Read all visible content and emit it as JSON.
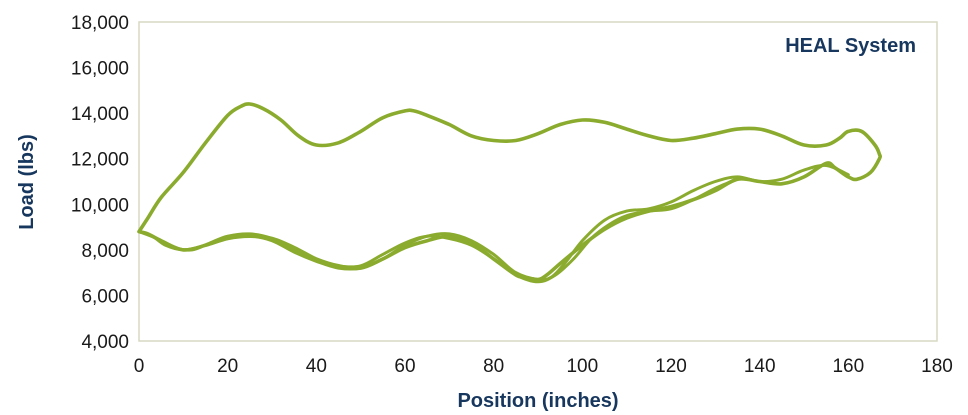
{
  "chart_data": {
    "type": "line",
    "title": "",
    "xlabel": "Position (inches)",
    "ylabel": "Load (lbs)",
    "xlim": [
      0,
      180
    ],
    "ylim": [
      4000,
      18000
    ],
    "x_ticks": [
      0,
      20,
      40,
      60,
      80,
      100,
      120,
      140,
      160,
      180
    ],
    "y_ticks": [
      4000,
      6000,
      8000,
      10000,
      12000,
      14000,
      16000,
      18000
    ],
    "x_tick_labels": [
      "0",
      "20",
      "40",
      "60",
      "80",
      "100",
      "120",
      "140",
      "160",
      "180"
    ],
    "y_tick_labels": [
      "4,000",
      "6,000",
      "8,000",
      "10,000",
      "12,000",
      "14,000",
      "16,000",
      "18,000"
    ],
    "grid": false,
    "legend": {
      "label": "HEAL System",
      "placement": "top-right"
    },
    "line_color": "#8aab2e",
    "series": [
      {
        "name": "HEAL System",
        "x": [
          0,
          2,
          5,
          10,
          15,
          20,
          23,
          25,
          28,
          32,
          36,
          40,
          45,
          50,
          55,
          60,
          62,
          65,
          70,
          75,
          80,
          85,
          90,
          95,
          100,
          105,
          110,
          115,
          120,
          125,
          130,
          135,
          140,
          145,
          150,
          155,
          158,
          160,
          163,
          166,
          167,
          167,
          165,
          162,
          160,
          157,
          155,
          150,
          145,
          140,
          135,
          130,
          125,
          120,
          115,
          110,
          105,
          100,
          95,
          92,
          90,
          87,
          85,
          80,
          75,
          70,
          65,
          60,
          55,
          50,
          45,
          40,
          35,
          30,
          25,
          20,
          15,
          10,
          5,
          2,
          0
        ],
        "y": [
          8800,
          9400,
          10300,
          11400,
          12700,
          13900,
          14300,
          14400,
          14200,
          13700,
          13000,
          12600,
          12700,
          13200,
          13800,
          14100,
          14100,
          13900,
          13500,
          13000,
          12800,
          12800,
          13100,
          13500,
          13700,
          13600,
          13300,
          13000,
          12800,
          12900,
          13100,
          13300,
          13300,
          13000,
          12600,
          12600,
          12900,
          13200,
          13200,
          12600,
          12200,
          12000,
          11400,
          11100,
          11200,
          11600,
          11800,
          11200,
          10900,
          11000,
          11100,
          10600,
          10200,
          9900,
          9700,
          9400,
          8900,
          8200,
          7400,
          6900,
          6700,
          6800,
          6900,
          7600,
          8300,
          8600,
          8400,
          8100,
          7600,
          7200,
          7300,
          7600,
          8100,
          8500,
          8600,
          8500,
          8200,
          8000,
          8400,
          8700,
          8800
        ]
      },
      {
        "name": "",
        "x": [
          0,
          3,
          6,
          10,
          15,
          20,
          25,
          30,
          35,
          40,
          45,
          50,
          55,
          60,
          65,
          70,
          75,
          80,
          85,
          90,
          93,
          96,
          100,
          105,
          110,
          115,
          120,
          125,
          130,
          135,
          140,
          145,
          150,
          155,
          160
        ],
        "y": [
          8800,
          8600,
          8200,
          8000,
          8200,
          8500,
          8600,
          8400,
          7900,
          7500,
          7200,
          7200,
          7600,
          8200,
          8600,
          8700,
          8400,
          7800,
          7000,
          6700,
          6800,
          7400,
          8400,
          9300,
          9700,
          9800,
          10100,
          10600,
          11000,
          11200,
          11000,
          11100,
          11500,
          11700,
          11300
        ]
      },
      {
        "name": "",
        "x": [
          0,
          4,
          8,
          12,
          16,
          20,
          25,
          30,
          35,
          40,
          45,
          50,
          55,
          60,
          65,
          70,
          75,
          80,
          85,
          90,
          94,
          98,
          102,
          106,
          110,
          115,
          120,
          125,
          130,
          135
        ],
        "y": [
          8800,
          8500,
          8100,
          8000,
          8300,
          8600,
          8700,
          8500,
          8000,
          7600,
          7300,
          7300,
          7800,
          8300,
          8600,
          8500,
          8200,
          7600,
          6900,
          6600,
          6900,
          7600,
          8500,
          9100,
          9500,
          9700,
          9800,
          10200,
          10700,
          11100
        ]
      }
    ]
  }
}
